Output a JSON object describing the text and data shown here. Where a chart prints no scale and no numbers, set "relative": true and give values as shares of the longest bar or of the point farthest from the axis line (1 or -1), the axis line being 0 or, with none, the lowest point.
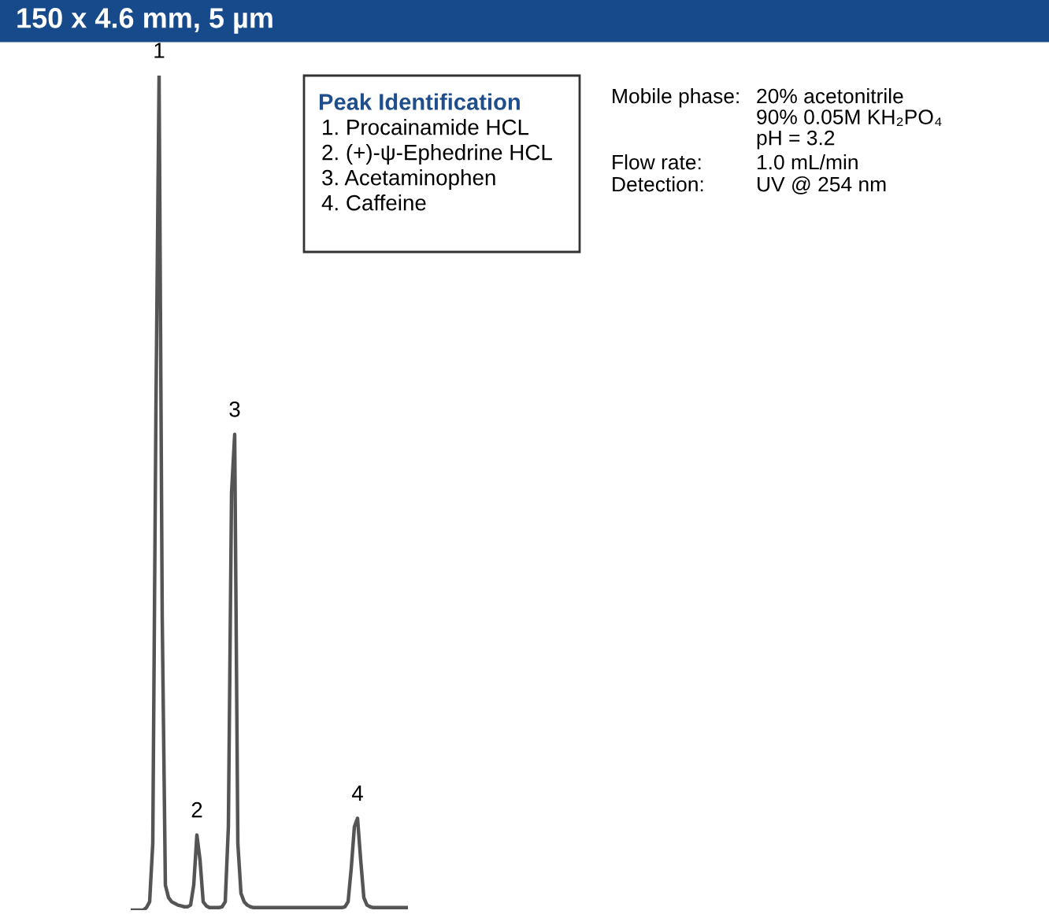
{
  "chart_data": {
    "type": "line",
    "title": "150 x 4.6 mm, 5 µm",
    "relative": true,
    "color": "#555555",
    "categories": [
      null,
      null,
      null,
      null,
      null,
      null,
      null,
      null,
      null,
      null,
      null,
      null,
      null,
      null,
      null,
      null,
      null,
      null,
      null,
      null,
      null,
      null,
      null,
      null,
      null,
      null,
      null,
      null,
      null,
      null,
      null,
      null,
      null,
      null,
      null,
      null,
      null,
      null,
      null,
      null,
      null,
      null,
      null,
      null,
      null,
      null,
      null,
      null,
      null,
      null,
      null,
      null,
      null,
      null,
      null,
      null,
      null,
      null,
      null,
      null,
      null,
      null,
      null,
      null,
      null,
      null,
      null,
      null,
      null,
      null,
      null,
      null,
      null,
      null,
      null,
      null,
      null,
      null,
      null,
      null,
      null,
      null,
      null,
      null,
      null,
      null,
      null,
      null,
      null
    ],
    "values": [
      0,
      0,
      0,
      0,
      0,
      0.003,
      0.01,
      0.08,
      0.6,
      1,
      0.35,
      0.03,
      0.015,
      0.01,
      0.008,
      0.006,
      0.005,
      0.004,
      0.004,
      0.006,
      0.03,
      0.09,
      0.06,
      0.01,
      0.005,
      0.003,
      0.003,
      0.003,
      0.003,
      0.004,
      0.01,
      0.1,
      0.5,
      0.57,
      0.08,
      0.02,
      0.01,
      0.006,
      0.004,
      0.003,
      0.003,
      0.003,
      0.003,
      0.003,
      0.003,
      0.003,
      0.003,
      0.003,
      0.003,
      0.003,
      0.003,
      0.003,
      0.003,
      0.003,
      0.003,
      0.003,
      0.003,
      0.003,
      0.003,
      0.003,
      0.003,
      0.003,
      0.003,
      0.003,
      0.003,
      0.003,
      0.003,
      0.003,
      0.004,
      0.01,
      0.05,
      0.1,
      0.11,
      0.06,
      0.015,
      0.006,
      0.004,
      0.003,
      0.003,
      0.003,
      0.003,
      0.003,
      0.003,
      0.003,
      0.003,
      0.003,
      0.003,
      0.003,
      0.003
    ],
    "annotations": [
      "1",
      "2",
      "3",
      "4",
      "Peak Identification",
      "1. Procainamide HCL",
      "2. (+)-ψ-Ephedrine HCL",
      "3. Acetaminophen",
      "4. Caffeine",
      "Mobile phase:",
      "20% acetonitrile\n90% 0.05M KH₂PO₄\npH = 3.2",
      "Flow rate:",
      "1.0 mL/min",
      "Detection:",
      "UV @ 254 nm"
    ]
  }
}
